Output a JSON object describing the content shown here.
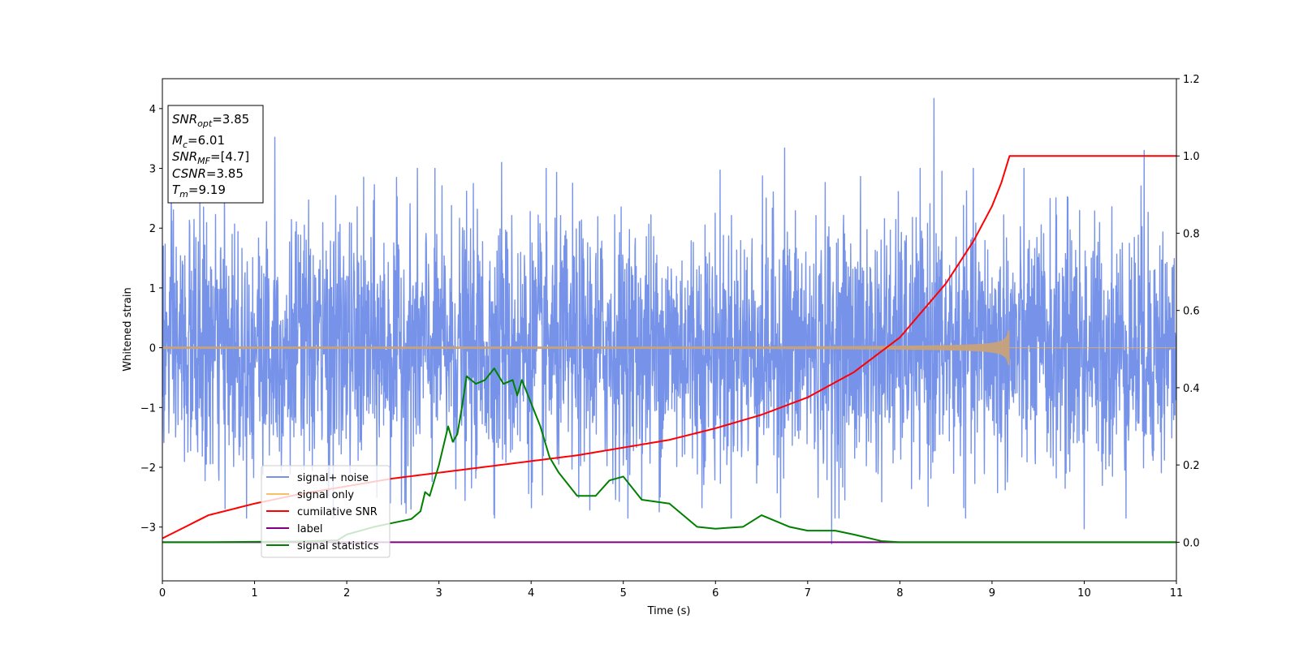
{
  "chart_data": {
    "type": "line",
    "title": "",
    "xlabel": "Time (s)",
    "ylabel": "Whitened strain",
    "xlim": [
      0,
      11
    ],
    "ylim_left": [
      -3.9,
      4.5
    ],
    "ylim_right": [
      -0.1,
      1.2
    ],
    "x_ticks": [
      0,
      1,
      2,
      3,
      4,
      5,
      6,
      7,
      8,
      9,
      10,
      11
    ],
    "y_ticks_left": [
      4,
      3,
      2,
      1,
      0,
      -1,
      -2,
      -3
    ],
    "y_tick_labels_left": [
      "4",
      "3",
      "2",
      "1",
      "0",
      "−1",
      "−2",
      "−3"
    ],
    "y_ticks_right": [
      1.2,
      1.0,
      0.8,
      0.6,
      0.4,
      0.2,
      0.0
    ],
    "y_tick_labels_right": [
      "1.2",
      "1.0",
      "0.8",
      "0.6",
      "0.4",
      "0.2",
      "0.0"
    ],
    "colors": {
      "signal_noise": "#4169e1",
      "signal_only": "#f5b041",
      "cumulative_snr": "#ff0000",
      "label": "#800080",
      "signal_statistics": "#008000"
    },
    "legend": {
      "placement": "lower-left",
      "entries": [
        "signal+ noise",
        "signal only",
        "cumilative SNR",
        "label",
        "signal statistics"
      ]
    },
    "series": [
      {
        "name": "signal+ noise",
        "axis": "left",
        "description_values": "whitened noise, approx. Gaussian, sigma ~1, range about -3.1 to 4.2",
        "peaks": [
          {
            "x": 1.22,
            "y": 3.52
          },
          {
            "x": 3.68,
            "y": 3.1
          },
          {
            "x": 6.75,
            "y": 3.34
          },
          {
            "x": 8.37,
            "y": 4.17
          },
          {
            "x": 10.65,
            "y": 3.3
          },
          {
            "x": 7.26,
            "y": -3.28
          },
          {
            "x": 10.0,
            "y": -3.03
          }
        ]
      },
      {
        "name": "signal only",
        "axis": "left",
        "chirp_end_time": 9.19,
        "amplitude_start": 0.02,
        "amplitude_end": 0.32
      },
      {
        "name": "cumilative SNR",
        "axis": "right",
        "x": [
          0,
          0.5,
          1,
          1.5,
          2,
          2.5,
          3,
          3.5,
          4,
          4.5,
          5,
          5.5,
          6,
          6.5,
          7,
          7.5,
          8,
          8.5,
          8.8,
          9.0,
          9.1,
          9.19,
          11
        ],
        "y": [
          0.01,
          0.07,
          0.1,
          0.125,
          0.145,
          0.165,
          0.18,
          0.195,
          0.21,
          0.225,
          0.245,
          0.265,
          0.295,
          0.33,
          0.375,
          0.44,
          0.53,
          0.67,
          0.78,
          0.87,
          0.93,
          1.0,
          1.0
        ]
      },
      {
        "name": "label",
        "axis": "right",
        "x": [
          0,
          11
        ],
        "y": [
          0,
          0
        ]
      },
      {
        "name": "signal statistics",
        "axis": "right",
        "x": [
          0,
          0.5,
          1,
          1.5,
          1.9,
          2.0,
          2.3,
          2.5,
          2.7,
          2.8,
          2.85,
          2.9,
          3.0,
          3.1,
          3.15,
          3.2,
          3.25,
          3.3,
          3.4,
          3.5,
          3.6,
          3.7,
          3.8,
          3.85,
          3.9,
          4.0,
          4.1,
          4.2,
          4.3,
          4.5,
          4.7,
          4.85,
          5.0,
          5.2,
          5.5,
          5.8,
          6.0,
          6.3,
          6.5,
          6.8,
          7.0,
          7.3,
          7.5,
          7.8,
          8.0,
          8.5,
          9.0,
          11
        ],
        "y": [
          0.0,
          0.0,
          0.001,
          0.002,
          0.005,
          0.02,
          0.04,
          0.05,
          0.06,
          0.08,
          0.13,
          0.12,
          0.2,
          0.3,
          0.26,
          0.28,
          0.35,
          0.43,
          0.41,
          0.42,
          0.45,
          0.41,
          0.42,
          0.38,
          0.42,
          0.36,
          0.3,
          0.22,
          0.18,
          0.12,
          0.12,
          0.16,
          0.17,
          0.11,
          0.1,
          0.04,
          0.035,
          0.04,
          0.07,
          0.04,
          0.03,
          0.03,
          0.02,
          0.003,
          0.0,
          0.0,
          0.0,
          0.0
        ]
      }
    ],
    "annotation": {
      "lines": [
        {
          "base": "SNR",
          "sub": "opt",
          "value": "=3.85"
        },
        {
          "base": "M",
          "sub": "c",
          "value": "=6.01"
        },
        {
          "base": "SNR",
          "sub": "MF",
          "value": "=[4.7]"
        },
        {
          "base": "CSNR",
          "sub": "",
          "value": "=3.85"
        },
        {
          "base": "T",
          "sub": "m",
          "value": "=9.19"
        }
      ]
    }
  }
}
